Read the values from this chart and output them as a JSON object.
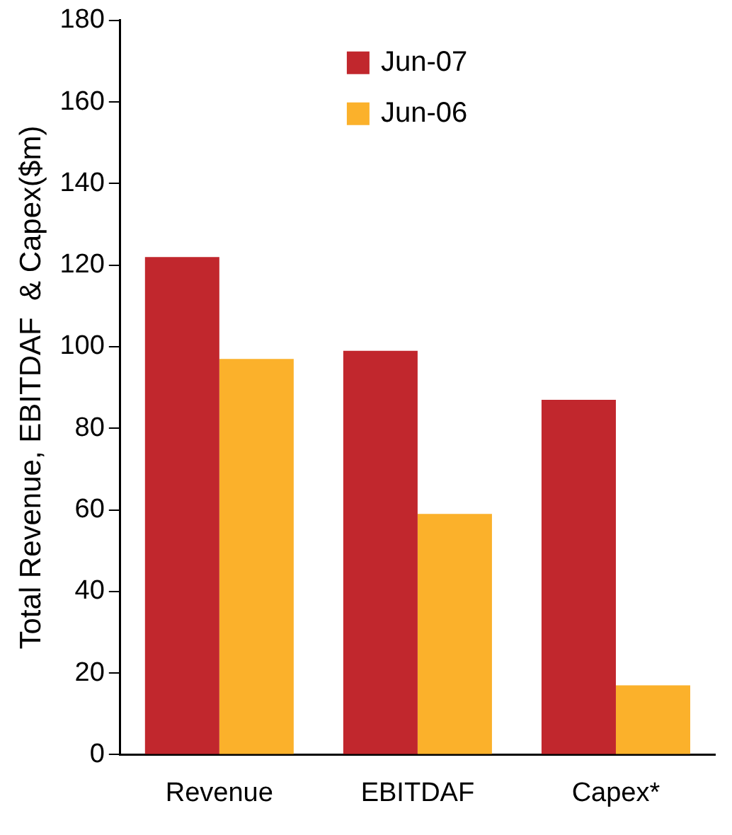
{
  "chart_data": {
    "type": "bar",
    "ylabel": "Total Revenue, EBITDAF  & Capex($m)",
    "categories": [
      "Revenue",
      "EBITDAF",
      "Capex*"
    ],
    "series": [
      {
        "name": "Jun-07",
        "color": "#c1272d",
        "values": [
          122,
          99,
          87
        ]
      },
      {
        "name": "Jun-06",
        "color": "#fbb12b",
        "values": [
          97,
          59,
          17
        ]
      }
    ],
    "ylim": [
      0,
      180
    ],
    "yticks": [
      0,
      20,
      40,
      60,
      80,
      100,
      120,
      140,
      160,
      180
    ],
    "grid": false,
    "legend": "top"
  }
}
